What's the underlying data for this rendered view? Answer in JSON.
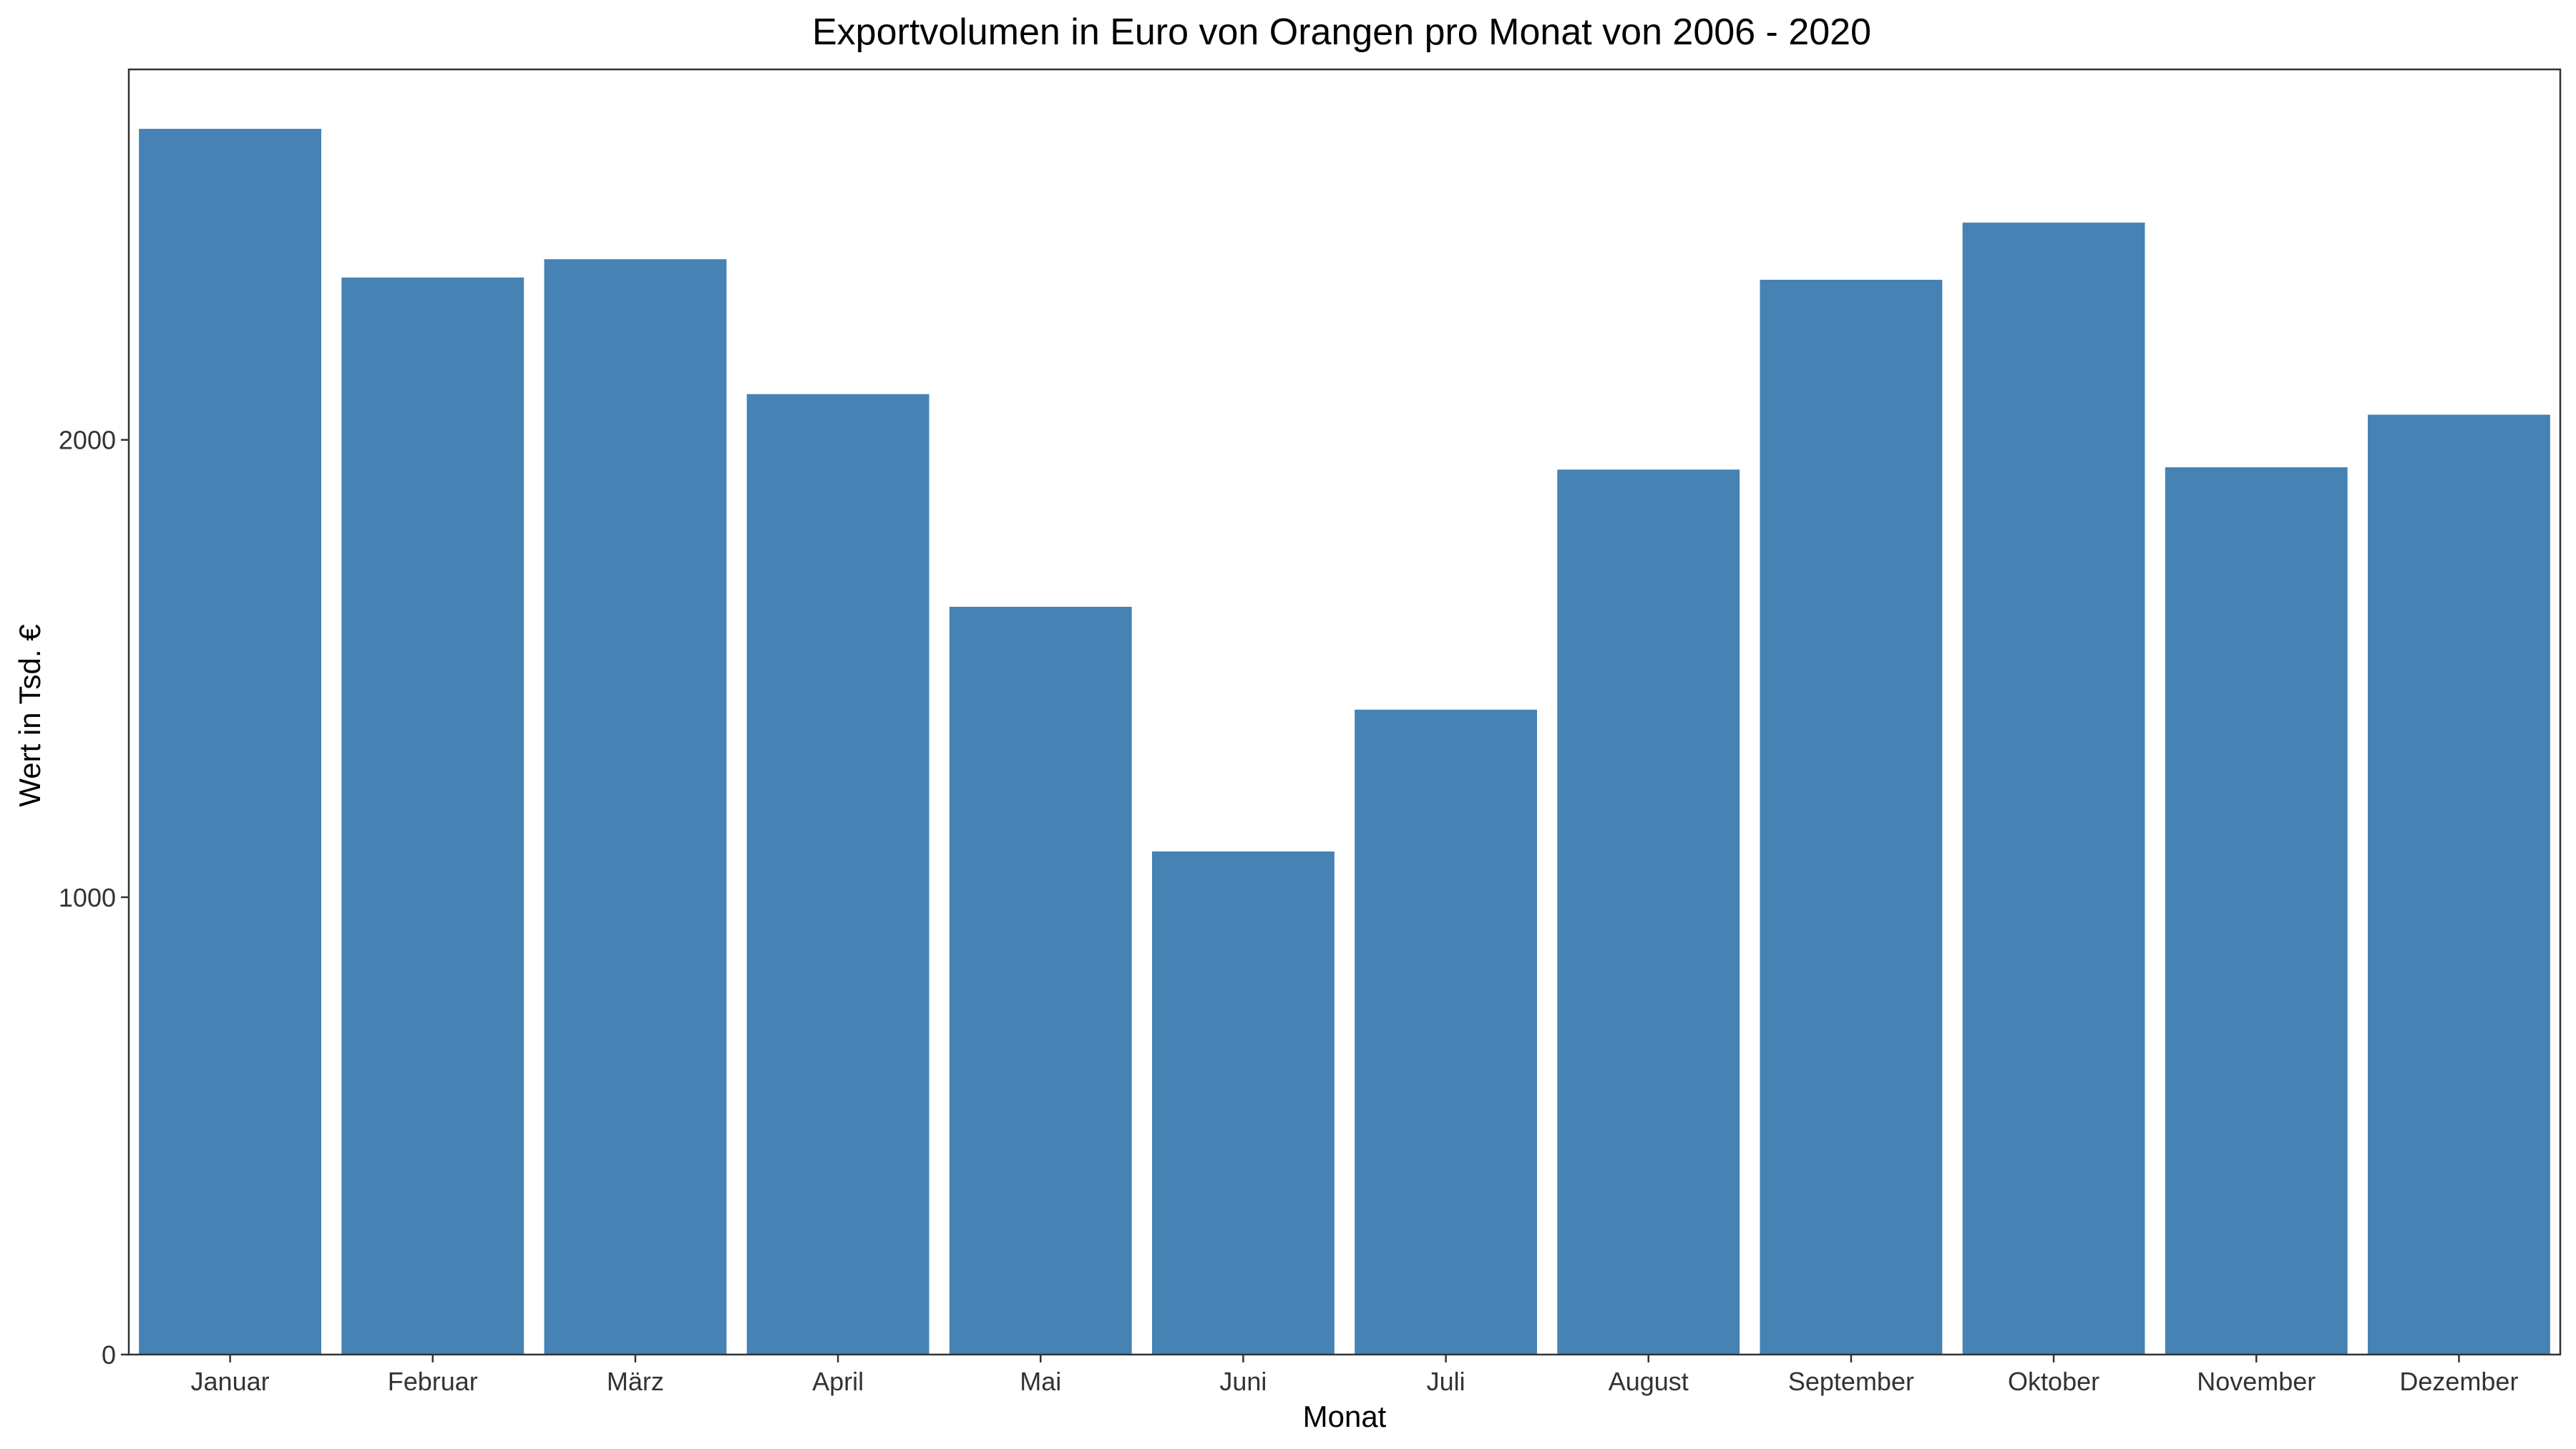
{
  "chart_data": {
    "type": "bar",
    "title": "Exportvolumen in Euro von Orangen pro Monat von 2006 - 2020",
    "xlabel": "Monat",
    "ylabel": "Wert in Tsd. €",
    "categories": [
      "Januar",
      "Februar",
      "März",
      "April",
      "Mai",
      "Juni",
      "Juli",
      "August",
      "September",
      "Oktober",
      "November",
      "Dezember"
    ],
    "values": [
      2680,
      2355,
      2395,
      2100,
      1635,
      1100,
      1410,
      1935,
      2350,
      2475,
      1940,
      2055
    ],
    "y_ticks": [
      0,
      1000,
      2000
    ],
    "ylim": [
      0,
      2810
    ],
    "bar_color": "#4682B4",
    "grid": false,
    "legend": "none"
  }
}
